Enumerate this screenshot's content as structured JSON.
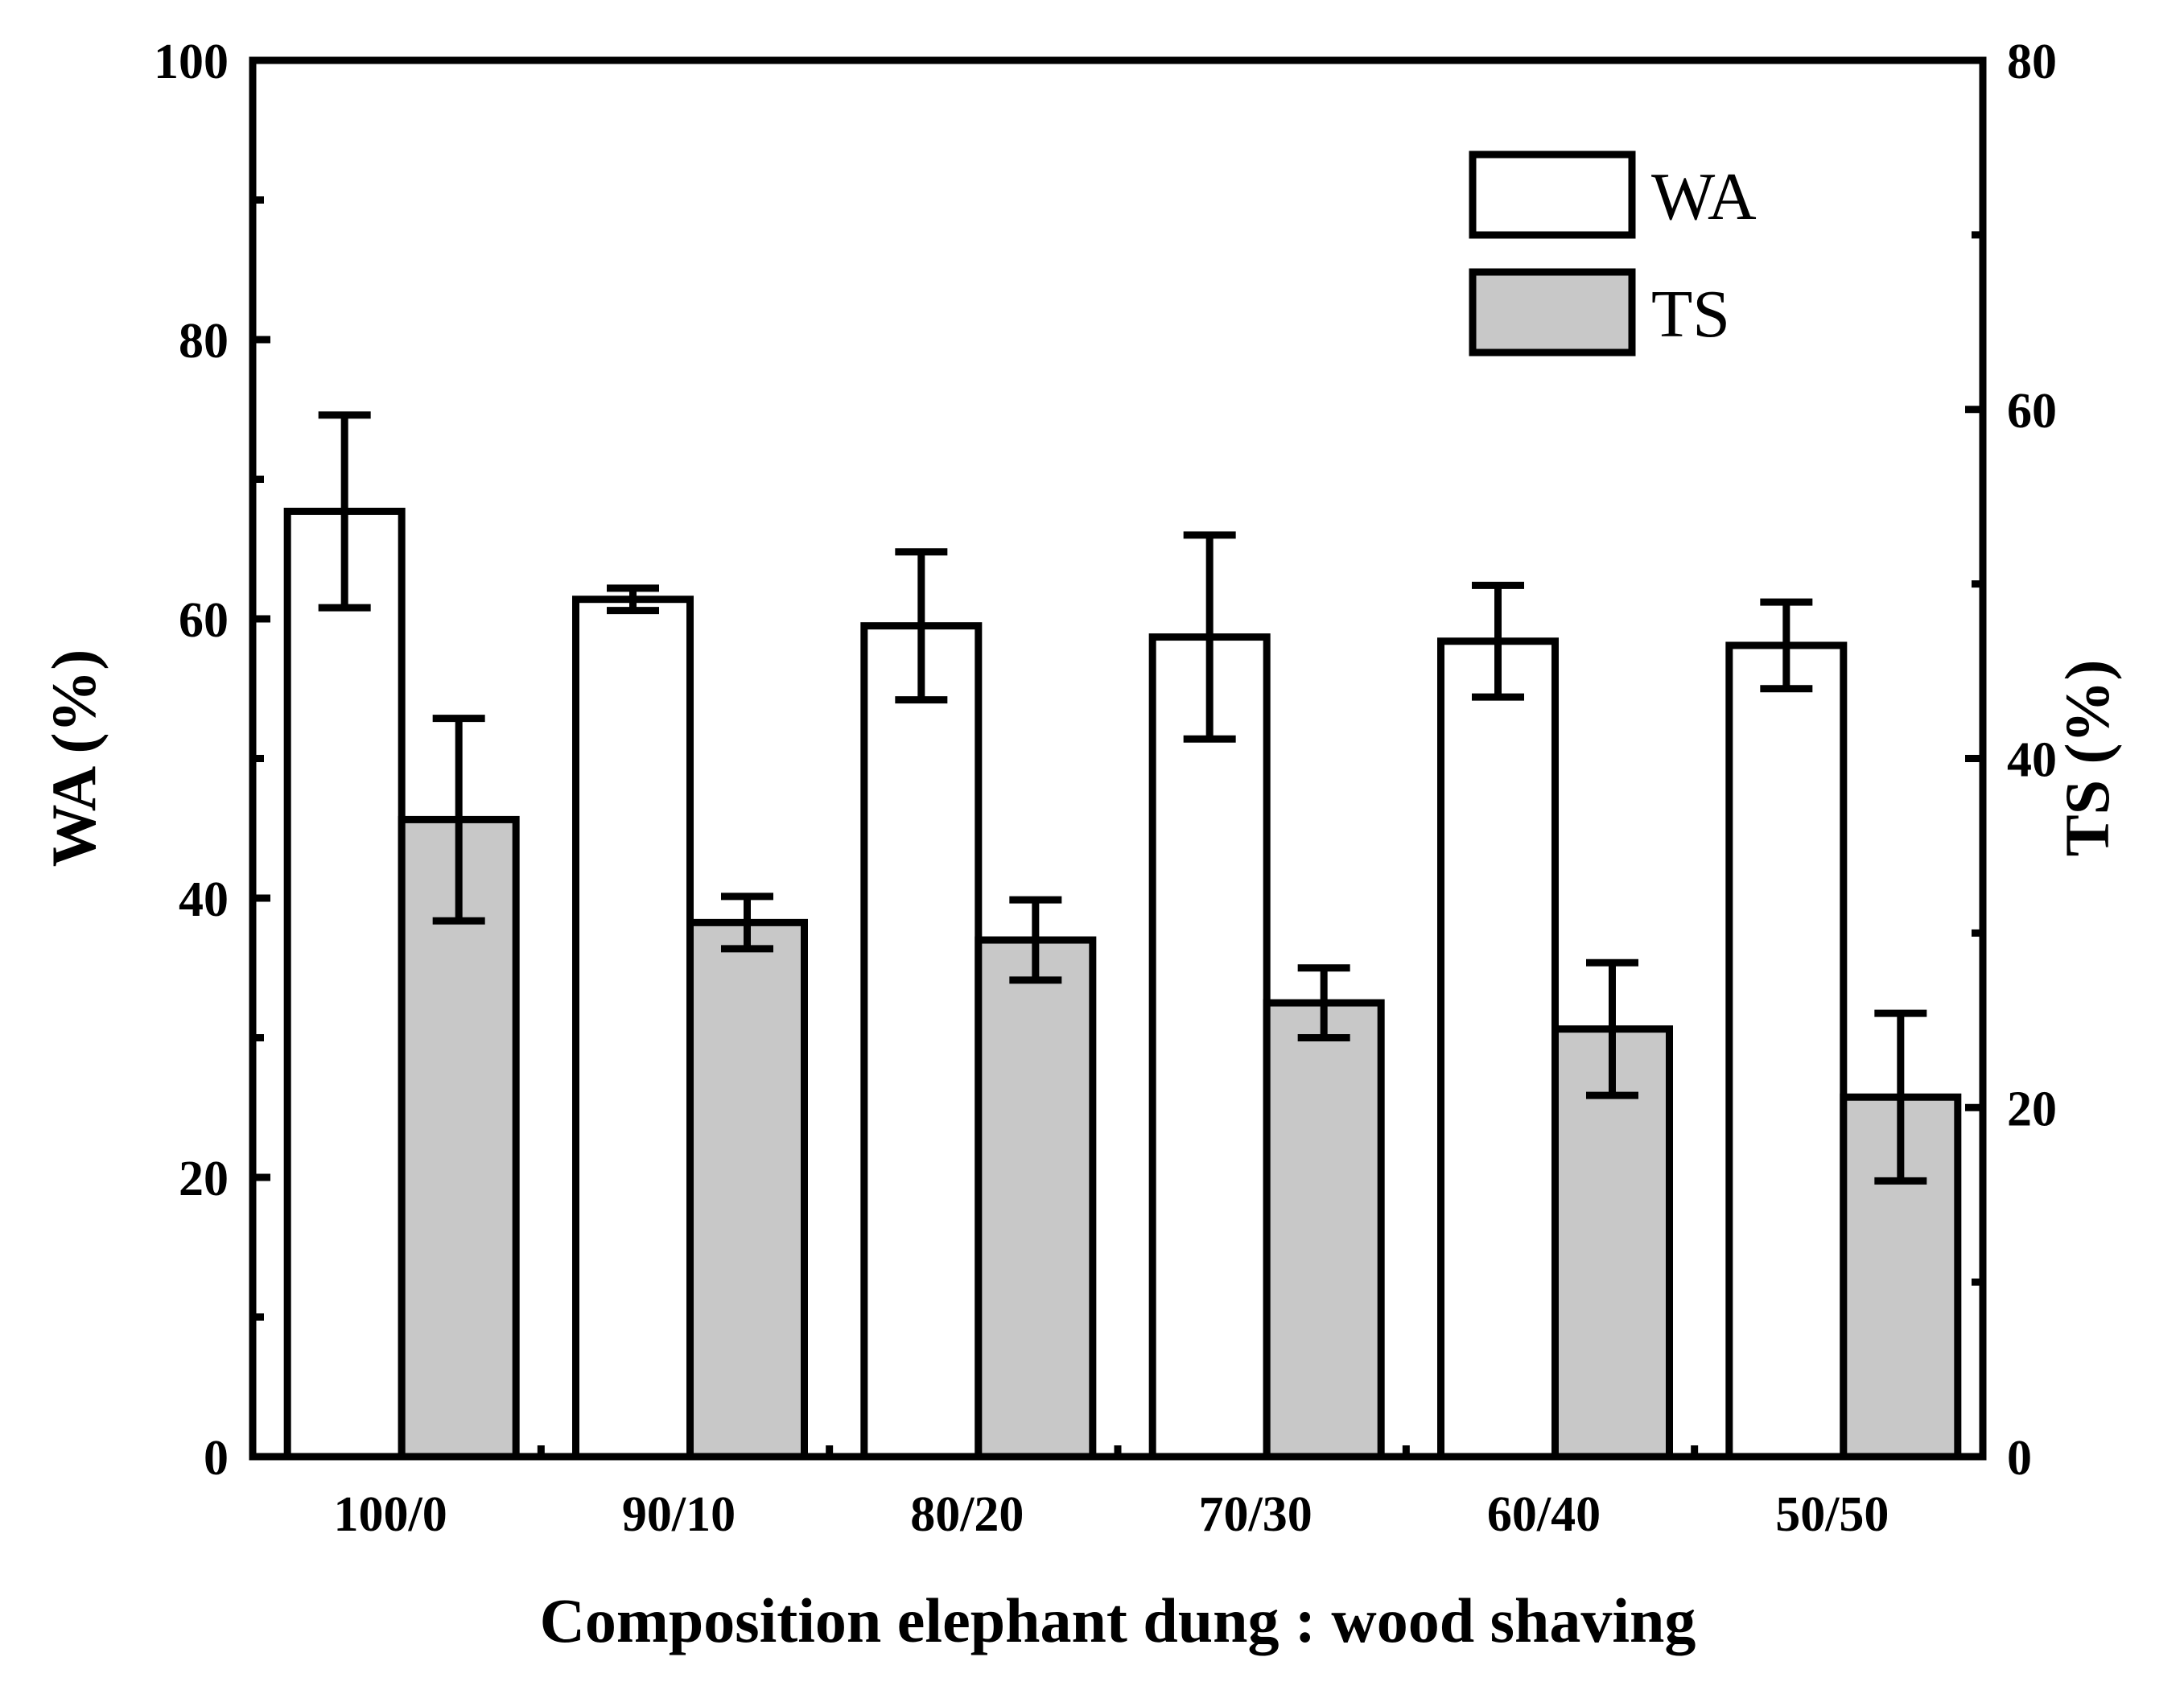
{
  "chart_data": {
    "type": "bar",
    "xlabel": "Composition elephant dung : wood shaving",
    "categories": [
      "100/0",
      "90/10",
      "80/20",
      "70/30",
      "60/40",
      "50/50"
    ],
    "series": [
      {
        "name": "WA",
        "axis": "left",
        "color": "#ffffff",
        "values": [
          67.7,
          61.4,
          59.5,
          58.7,
          58.4,
          58.1
        ],
        "errors": [
          6.9,
          0.8,
          5.3,
          7.3,
          4.0,
          3.1
        ]
      },
      {
        "name": "TS",
        "axis": "right",
        "color": "#c8c8c8",
        "values": [
          36.5,
          30.6,
          29.6,
          26.0,
          24.5,
          20.6
        ],
        "errors": [
          5.8,
          1.5,
          2.3,
          2.0,
          3.8,
          4.8
        ]
      }
    ],
    "left_axis": {
      "label": "WA (%)",
      "ylim": [
        0,
        100
      ],
      "major_ticks": [
        0,
        20,
        40,
        60,
        80,
        100
      ],
      "minor_ticks": [
        10,
        30,
        50,
        70,
        90
      ]
    },
    "right_axis": {
      "label": "TS (%)",
      "ylim": [
        0,
        80
      ],
      "major_ticks": [
        0,
        20,
        40,
        60,
        80
      ],
      "minor_ticks": [
        10,
        30,
        50,
        70
      ]
    },
    "legend": {
      "position": "top-right"
    }
  }
}
